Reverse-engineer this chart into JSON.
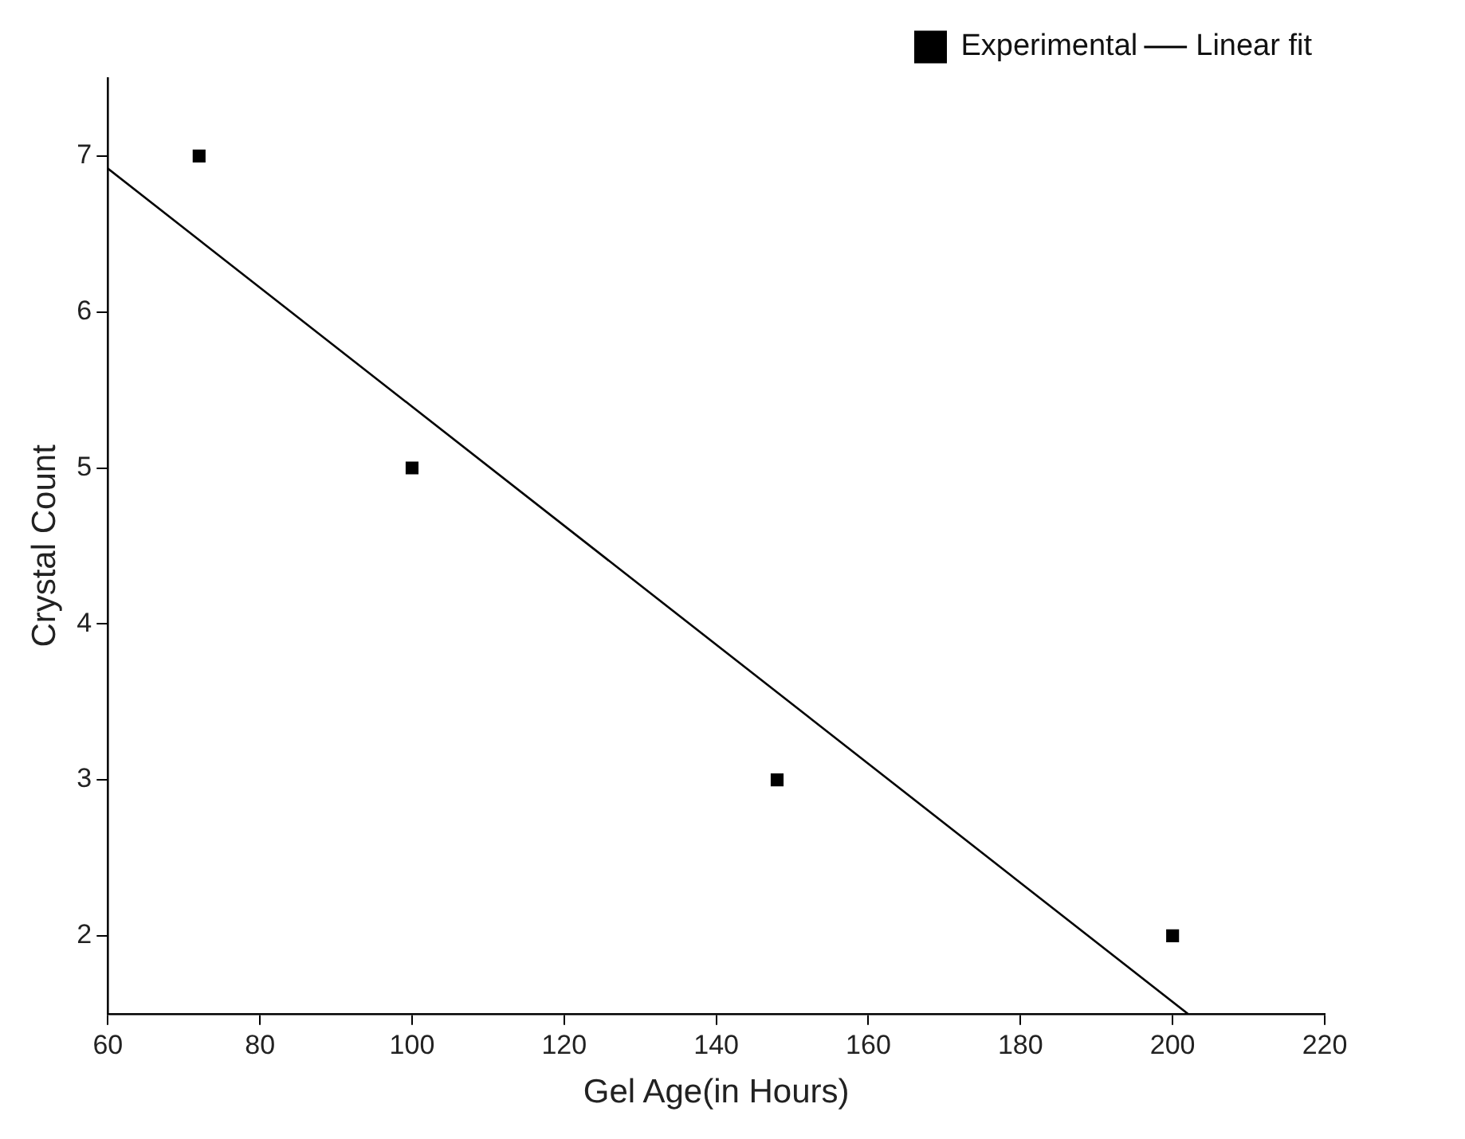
{
  "chart_data": {
    "type": "scatter",
    "xlabel": "Gel Age(in Hours)",
    "ylabel": "Crystal Count",
    "xlim": [
      60,
      220
    ],
    "xticks": [
      60,
      80,
      100,
      120,
      140,
      160,
      180,
      200,
      220
    ],
    "ylim": [
      1.5,
      7.5
    ],
    "yticks": [
      2,
      3,
      4,
      5,
      6,
      7
    ],
    "grid": false,
    "legend": "top right",
    "series": [
      {
        "name": "Experimental",
        "marker": "square",
        "color": "#000000",
        "x": [
          72,
          100,
          148,
          200
        ],
        "values": [
          7,
          5,
          3,
          2
        ]
      },
      {
        "name": "Linear fit",
        "type": "line",
        "marker": "none",
        "line_style": "solid",
        "color": "#000000",
        "x": [
          60,
          202
        ],
        "values": [
          6.92,
          1.5
        ]
      }
    ]
  }
}
